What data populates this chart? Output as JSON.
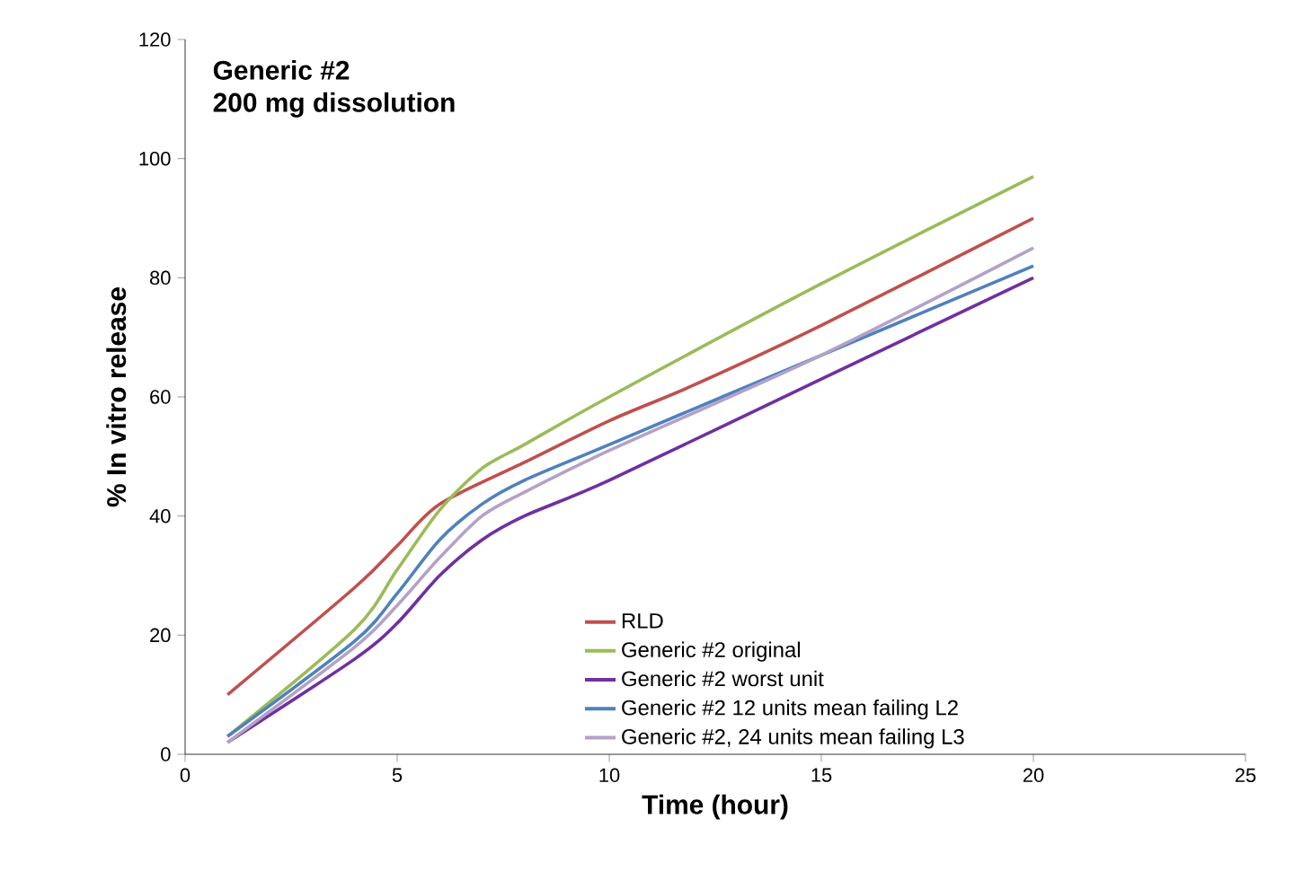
{
  "chart_data": {
    "type": "line",
    "title": "Generic #2",
    "subtitle": "200 mg dissolution",
    "xlabel": "Time (hour)",
    "ylabel": "% In vitro release",
    "xlim": [
      0,
      25
    ],
    "xticks": [
      0,
      5,
      10,
      15,
      20,
      25
    ],
    "ylim": [
      0,
      120
    ],
    "yticks": [
      0,
      20,
      40,
      60,
      80,
      100,
      120
    ],
    "legend": "bottom right",
    "grid": false,
    "marker": "none",
    "line_style": "solid",
    "series": [
      {
        "name": "RLD",
        "color": "#c0504d",
        "x": [
          1,
          4,
          5,
          6,
          8,
          10,
          12,
          15,
          20
        ],
        "values": [
          10,
          28,
          35,
          42,
          49,
          56,
          62,
          72,
          90
        ]
      },
      {
        "name": "Generic #2 original",
        "color": "#9bbb59",
        "x": [
          1,
          4,
          5,
          6,
          7,
          8,
          10,
          15,
          20
        ],
        "values": [
          3,
          21,
          31,
          41,
          48,
          52,
          60,
          79,
          97
        ]
      },
      {
        "name": "Generic #2 worst unit",
        "color": "#7030a0",
        "x": [
          1,
          4,
          5,
          6,
          7,
          8,
          10,
          15,
          20
        ],
        "values": [
          2,
          16,
          22,
          30,
          36,
          40,
          46,
          63,
          80
        ]
      },
      {
        "name": "Generic #2 12 units mean failing L2",
        "color": "#4f81bd",
        "x": [
          1,
          4,
          5,
          6,
          7,
          8,
          10,
          15,
          20
        ],
        "values": [
          3,
          19,
          27,
          36,
          42,
          46,
          52,
          67,
          82
        ]
      },
      {
        "name": "Generic #2, 24 units mean failing L3",
        "color": "#b3a2c7",
        "x": [
          1,
          4,
          5,
          6,
          7,
          8,
          10,
          15,
          20
        ],
        "values": [
          2,
          18,
          25,
          33,
          40,
          44,
          51,
          67,
          85
        ]
      }
    ]
  }
}
